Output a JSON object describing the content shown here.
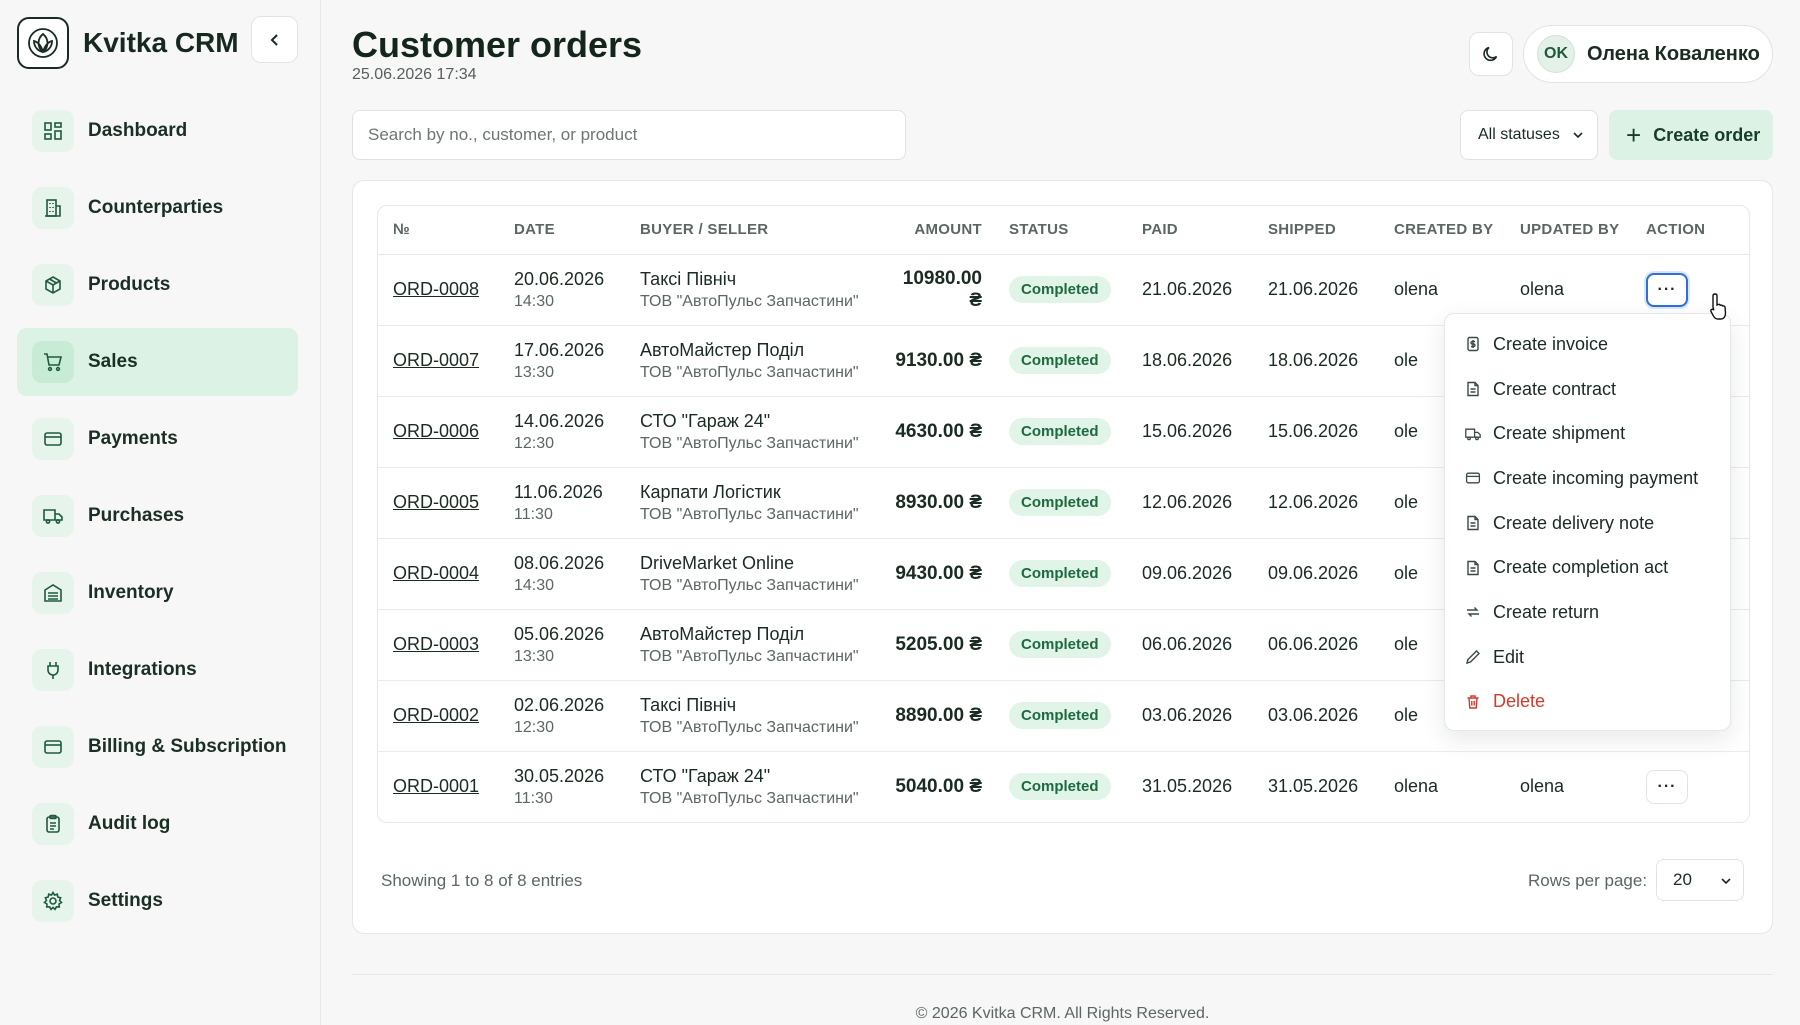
{
  "app": {
    "name": "Kvitka CRM"
  },
  "sidebar": {
    "items": [
      {
        "label": "Dashboard",
        "icon": "dashboard-icon",
        "active": false
      },
      {
        "label": "Counterparties",
        "icon": "building-icon",
        "active": false
      },
      {
        "label": "Products",
        "icon": "box-icon",
        "active": false
      },
      {
        "label": "Sales",
        "icon": "cart-icon",
        "active": true
      },
      {
        "label": "Payments",
        "icon": "card-icon",
        "active": false
      },
      {
        "label": "Purchases",
        "icon": "truck-icon",
        "active": false
      },
      {
        "label": "Inventory",
        "icon": "warehouse-icon",
        "active": false
      },
      {
        "label": "Integrations",
        "icon": "plug-icon",
        "active": false
      },
      {
        "label": "Billing & Subscription",
        "icon": "billing-card-icon",
        "active": false
      },
      {
        "label": "Audit log",
        "icon": "clipboard-icon",
        "active": false
      },
      {
        "label": "Settings",
        "icon": "gear-icon",
        "active": false
      }
    ]
  },
  "header": {
    "title": "Customer orders",
    "datetime": "25.06.2026 17:34",
    "user": {
      "initials": "OK",
      "name": "Олена Коваленко"
    }
  },
  "toolbar": {
    "search_placeholder": "Search by no., customer, or product",
    "status_filter": "All statuses",
    "create_label": "Create order"
  },
  "table": {
    "columns": [
      "№",
      "DATE",
      "BUYER / SELLER",
      "AMOUNT",
      "STATUS",
      "PAID",
      "SHIPPED",
      "CREATED BY",
      "UPDATED BY",
      "ACTION"
    ],
    "rows": [
      {
        "no": "ORD-0008",
        "date": "20.06.2026",
        "time": "14:30",
        "buyer": "Таксі Північ",
        "seller": "ТОВ \"АвтоПульс Запчастини\"",
        "amount": "10980.00 ₴",
        "status": "Completed",
        "paid": "21.06.2026",
        "shipped": "21.06.2026",
        "created_by": "olena",
        "updated_by": "olena"
      },
      {
        "no": "ORD-0007",
        "date": "17.06.2026",
        "time": "13:30",
        "buyer": "АвтоМайстер Поділ",
        "seller": "ТОВ \"АвтоПульс Запчастини\"",
        "amount": "9130.00 ₴",
        "status": "Completed",
        "paid": "18.06.2026",
        "shipped": "18.06.2026",
        "created_by": "ole",
        "updated_by": ""
      },
      {
        "no": "ORD-0006",
        "date": "14.06.2026",
        "time": "12:30",
        "buyer": "СТО \"Гараж 24\"",
        "seller": "ТОВ \"АвтоПульс Запчастини\"",
        "amount": "4630.00 ₴",
        "status": "Completed",
        "paid": "15.06.2026",
        "shipped": "15.06.2026",
        "created_by": "ole",
        "updated_by": ""
      },
      {
        "no": "ORD-0005",
        "date": "11.06.2026",
        "time": "11:30",
        "buyer": "Карпати Логістик",
        "seller": "ТОВ \"АвтоПульс Запчастини\"",
        "amount": "8930.00 ₴",
        "status": "Completed",
        "paid": "12.06.2026",
        "shipped": "12.06.2026",
        "created_by": "ole",
        "updated_by": ""
      },
      {
        "no": "ORD-0004",
        "date": "08.06.2026",
        "time": "14:30",
        "buyer": "DriveMarket Online",
        "seller": "ТОВ \"АвтоПульс Запчастини\"",
        "amount": "9430.00 ₴",
        "status": "Completed",
        "paid": "09.06.2026",
        "shipped": "09.06.2026",
        "created_by": "ole",
        "updated_by": ""
      },
      {
        "no": "ORD-0003",
        "date": "05.06.2026",
        "time": "13:30",
        "buyer": "АвтоМайстер Поділ",
        "seller": "ТОВ \"АвтоПульс Запчастини\"",
        "amount": "5205.00 ₴",
        "status": "Completed",
        "paid": "06.06.2026",
        "shipped": "06.06.2026",
        "created_by": "ole",
        "updated_by": ""
      },
      {
        "no": "ORD-0002",
        "date": "02.06.2026",
        "time": "12:30",
        "buyer": "Таксі Північ",
        "seller": "ТОВ \"АвтоПульс Запчастини\"",
        "amount": "8890.00 ₴",
        "status": "Completed",
        "paid": "03.06.2026",
        "shipped": "03.06.2026",
        "created_by": "ole",
        "updated_by": ""
      },
      {
        "no": "ORD-0001",
        "date": "30.05.2026",
        "time": "11:30",
        "buyer": "СТО \"Гараж 24\"",
        "seller": "ТОВ \"АвтоПульс Запчастини\"",
        "amount": "5040.00 ₴",
        "status": "Completed",
        "paid": "31.05.2026",
        "shipped": "31.05.2026",
        "created_by": "olena",
        "updated_by": "olena"
      }
    ]
  },
  "action_menu": {
    "items": [
      {
        "label": "Create invoice",
        "icon": "invoice-icon"
      },
      {
        "label": "Create contract",
        "icon": "document-icon"
      },
      {
        "label": "Create shipment",
        "icon": "truck-icon"
      },
      {
        "label": "Create incoming payment",
        "icon": "card-icon"
      },
      {
        "label": "Create delivery note",
        "icon": "document-icon"
      },
      {
        "label": "Create completion act",
        "icon": "document-icon"
      },
      {
        "label": "Create return",
        "icon": "return-icon"
      },
      {
        "label": "Edit",
        "icon": "pencil-icon"
      },
      {
        "label": "Delete",
        "icon": "trash-icon",
        "danger": true
      }
    ]
  },
  "pagination": {
    "summary": "Showing 1 to 8 of 8 entries",
    "rows_label": "Rows per page:",
    "rows_value": "20"
  },
  "footer": {
    "text": "© 2026 Kvitka CRM. All Rights Reserved."
  },
  "colors": {
    "accent": "#dbf2e4",
    "badge_text": "#1e6a3f",
    "danger": "#d23a2a",
    "focus": "#2f6fd6"
  }
}
